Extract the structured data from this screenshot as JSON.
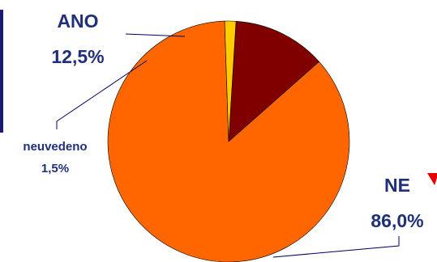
{
  "chart_data": {
    "type": "pie",
    "title": "",
    "slices": [
      {
        "label": "ANO",
        "value_label": "12,5%",
        "value": 12.5,
        "color": "#800000"
      },
      {
        "label": "NE",
        "value_label": "86,0%",
        "value": 86.0,
        "color": "#FF6600"
      },
      {
        "label": "neuvedeno",
        "value_label": "1,5%",
        "value": 1.5,
        "color": "#FFCC00"
      }
    ],
    "label_color": "#1F2F7A",
    "leader_color": "#000066",
    "frame_accent_color": "#1A1A6E",
    "marker_color": "#E60000"
  }
}
